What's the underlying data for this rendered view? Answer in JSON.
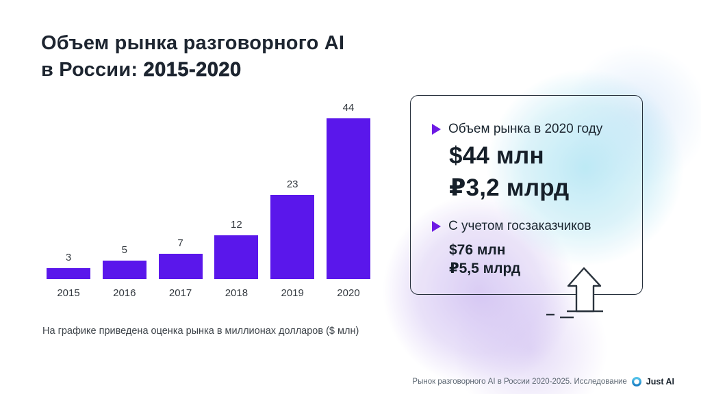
{
  "page": {
    "title_line1": "Объем рынка разговорного AI",
    "title_line2_prefix": "в России: ",
    "title_line2_bold": "2015-2020",
    "footnote": "На графике приведена оценка рынка в миллионах долларов ($ млн)",
    "footer": {
      "text": "Рынок разговорного AI в России 2020-2025. Исследование",
      "brand": "Just AI",
      "logo_icon": "justai-ring-icon"
    }
  },
  "chart_data": {
    "type": "bar",
    "categories": [
      "2015",
      "2016",
      "2017",
      "2018",
      "2019",
      "2020"
    ],
    "values": [
      3,
      5,
      7,
      12,
      23,
      44
    ],
    "title": "Объем рынка разговорного AI в России: 2015-2020",
    "xlabel": "",
    "ylabel": "",
    "unit": "$ млн",
    "ylim": [
      0,
      44
    ],
    "grid": false,
    "legend": "none",
    "value_labels_shown": true
  },
  "infocard": {
    "items": [
      {
        "bullet_icon": "triangle-right-icon",
        "label": "Объем рынка в 2020 году",
        "value_usd": "$44 млн",
        "value_rub": "₽3,2 млрд",
        "emphasis": "large"
      },
      {
        "bullet_icon": "triangle-right-icon",
        "label": "С учетом госзаказчиков",
        "value_usd": "$76 млн",
        "value_rub": "₽5,5 млрд",
        "emphasis": "medium"
      }
    ],
    "arrow_icon": "up-arrow-icon"
  },
  "colors": {
    "bar": "#5a17eb",
    "bullet": "#6d1ae4",
    "title_text": "#1d2530",
    "card_border": "#242e3a",
    "logo_blue_light": "#55c3ea",
    "logo_blue_dark": "#1b7fc4"
  }
}
